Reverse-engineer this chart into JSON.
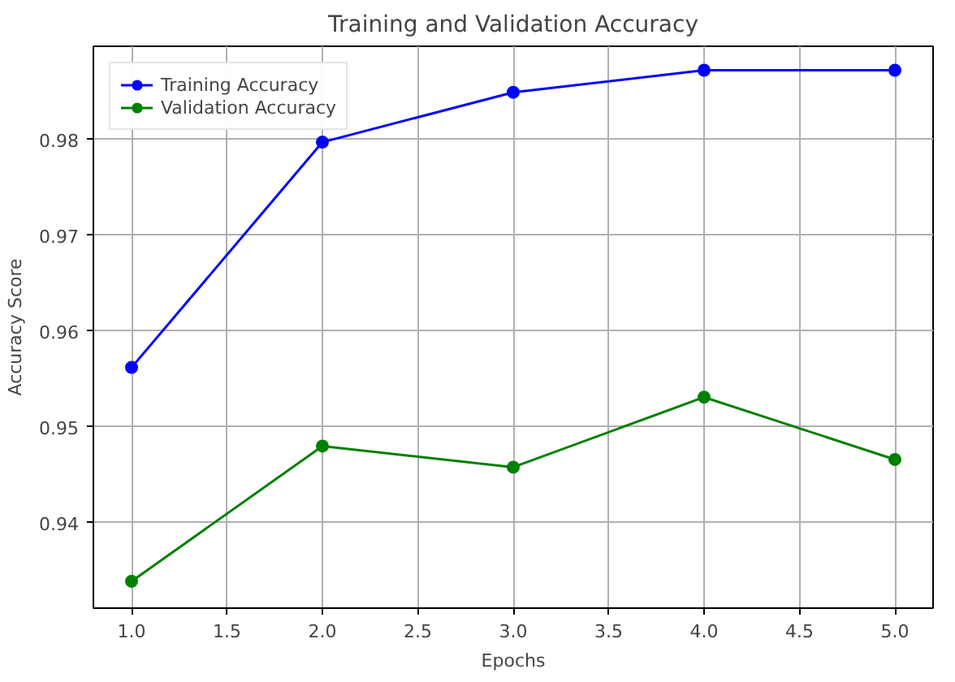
{
  "chart_data": {
    "type": "line",
    "title": "Training and Validation Accuracy",
    "xlabel": "Epochs",
    "ylabel": "Accuracy Score",
    "x": [
      1.0,
      2.0,
      3.0,
      4.0,
      5.0
    ],
    "series": [
      {
        "name": "Training Accuracy",
        "color": "#0000ff",
        "values": [
          0.9562,
          0.9797,
          0.9849,
          0.9872,
          0.9872
        ]
      },
      {
        "name": "Validation Accuracy",
        "color": "#008000",
        "values": [
          0.9339,
          0.948,
          0.9458,
          0.9531,
          0.9466
        ]
      }
    ],
    "xlim": [
      0.8,
      5.2
    ],
    "ylim": [
      0.9311,
      0.9897
    ],
    "xticks": [
      {
        "value": 1.0,
        "label": "1.0"
      },
      {
        "value": 1.5,
        "label": "1.5"
      },
      {
        "value": 2.0,
        "label": "2.0"
      },
      {
        "value": 2.5,
        "label": "2.5"
      },
      {
        "value": 3.0,
        "label": "3.0"
      },
      {
        "value": 3.5,
        "label": "3.5"
      },
      {
        "value": 4.0,
        "label": "4.0"
      },
      {
        "value": 4.5,
        "label": "4.5"
      },
      {
        "value": 5.0,
        "label": "5.0"
      }
    ],
    "yticks": [
      0.94,
      0.95,
      0.96,
      0.97,
      0.98
    ],
    "grid": true,
    "legend": "top left",
    "marker": "circle",
    "line_style": "solid"
  }
}
